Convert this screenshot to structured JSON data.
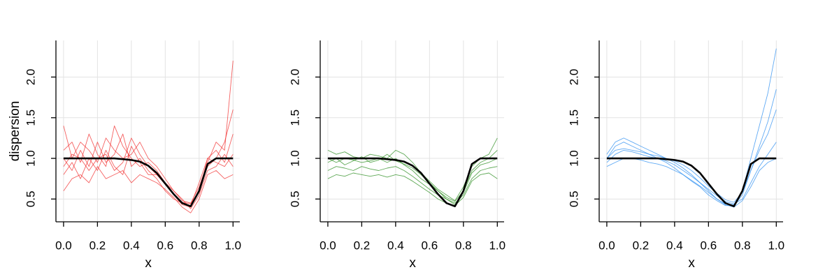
{
  "chart_data": [
    {
      "type": "line",
      "xlabel": "x",
      "ylabel": "dispersion",
      "xlim": [
        -0.045,
        1.04
      ],
      "ylim": [
        0.22,
        2.45
      ],
      "xticks": [
        {
          "value": 0,
          "label": "0.0"
        },
        {
          "value": 0.2,
          "label": "0.2"
        },
        {
          "value": 0.4,
          "label": "0.4"
        },
        {
          "value": 0.6,
          "label": "0.6"
        },
        {
          "value": 0.8,
          "label": "0.8"
        },
        {
          "value": 1,
          "label": "1.0"
        }
      ],
      "yticks": [
        {
          "value": 0.5,
          "label": "0.5"
        },
        {
          "value": 1,
          "label": "1.0"
        },
        {
          "value": 1.5,
          "label": "1.5"
        },
        {
          "value": 2,
          "label": "2.0"
        }
      ],
      "grid": true,
      "x": [
        0,
        0.05,
        0.1,
        0.15,
        0.2,
        0.25,
        0.3,
        0.35,
        0.4,
        0.45,
        0.5,
        0.55,
        0.6,
        0.65,
        0.7,
        0.75,
        0.8,
        0.85,
        0.9,
        0.95,
        1
      ],
      "series": [
        {
          "color": "#f22e2e",
          "values": [
            1.0,
            0.85,
            1.1,
            0.9,
            1.2,
            0.95,
            1.05,
            1.3,
            0.9,
            1.0,
            0.85,
            0.75,
            0.6,
            0.5,
            0.45,
            0.42,
            0.7,
            1.0,
            1.1,
            0.95,
            1.3
          ]
        },
        {
          "color": "#f22e2e",
          "values": [
            0.8,
            0.95,
            0.75,
            1.0,
            0.85,
            1.1,
            0.9,
            0.8,
            1.15,
            0.95,
            0.8,
            0.8,
            0.7,
            0.6,
            0.5,
            0.38,
            0.55,
            0.85,
            0.9,
            1.05,
            0.9
          ]
        },
        {
          "color": "#f22e2e",
          "values": [
            1.4,
            1.0,
            1.2,
            1.1,
            0.95,
            1.25,
            1.1,
            1.0,
            1.05,
            1.2,
            1.0,
            0.9,
            0.75,
            0.6,
            0.48,
            0.45,
            0.65,
            0.95,
            1.2,
            1.1,
            2.2
          ]
        },
        {
          "color": "#f22e2e",
          "values": [
            0.6,
            0.75,
            0.8,
            0.7,
            0.9,
            0.75,
            0.8,
            0.85,
            0.7,
            0.8,
            0.75,
            0.7,
            0.62,
            0.52,
            0.4,
            0.33,
            0.5,
            0.8,
            0.85,
            0.75,
            0.8
          ]
        },
        {
          "color": "#f22e2e",
          "values": [
            1.1,
            1.2,
            0.95,
            1.3,
            1.05,
            0.9,
            1.4,
            1.15,
            1.0,
            0.9,
            0.95,
            0.85,
            0.7,
            0.55,
            0.43,
            0.4,
            0.62,
            0.9,
            1.0,
            1.2,
            1.6
          ]
        },
        {
          "color": "#f22e2e",
          "values": [
            0.9,
            1.05,
            1.0,
            0.85,
            1.0,
            1.05,
            0.85,
            0.95,
            1.25,
            1.05,
            0.9,
            0.8,
            0.68,
            0.55,
            0.46,
            0.44,
            0.58,
            1.0,
            0.95,
            0.9,
            1.05
          ]
        },
        {
          "color": "#000000",
          "values": [
            1,
            1,
            1,
            1,
            1,
            1,
            1,
            0.99,
            0.98,
            0.96,
            0.91,
            0.82,
            0.69,
            0.56,
            0.45,
            0.41,
            0.6,
            0.93,
            1,
            1,
            1
          ]
        }
      ]
    },
    {
      "type": "line",
      "xlabel": "x",
      "xlim": [
        -0.045,
        1.04
      ],
      "ylim": [
        0.22,
        2.45
      ],
      "xticks": [
        {
          "value": 0,
          "label": "0.0"
        },
        {
          "value": 0.2,
          "label": "0.2"
        },
        {
          "value": 0.4,
          "label": "0.4"
        },
        {
          "value": 0.6,
          "label": "0.6"
        },
        {
          "value": 0.8,
          "label": "0.8"
        },
        {
          "value": 1,
          "label": "1.0"
        }
      ],
      "yticks": [
        {
          "value": 0.5,
          "label": "0.5"
        },
        {
          "value": 1,
          "label": "1.0"
        },
        {
          "value": 1.5,
          "label": "1.5"
        },
        {
          "value": 2,
          "label": "2.0"
        }
      ],
      "grid": true,
      "x": [
        0,
        0.05,
        0.1,
        0.15,
        0.2,
        0.25,
        0.3,
        0.35,
        0.4,
        0.45,
        0.5,
        0.55,
        0.6,
        0.65,
        0.7,
        0.75,
        0.8,
        0.85,
        0.9,
        0.95,
        1
      ],
      "series": [
        {
          "color": "#2a8c1e",
          "values": [
            1.0,
            0.95,
            1.0,
            0.98,
            0.95,
            0.97,
            1.0,
            0.95,
            1.0,
            0.92,
            0.85,
            0.75,
            0.68,
            0.6,
            0.52,
            0.47,
            0.6,
            0.85,
            0.95,
            1.0,
            1.1
          ]
        },
        {
          "color": "#2a8c1e",
          "values": [
            0.85,
            0.9,
            0.88,
            0.85,
            0.9,
            0.87,
            0.85,
            0.88,
            0.9,
            0.85,
            0.78,
            0.7,
            0.62,
            0.55,
            0.5,
            0.45,
            0.55,
            0.75,
            0.85,
            0.88,
            0.9
          ]
        },
        {
          "color": "#2a8c1e",
          "values": [
            1.1,
            1.05,
            1.08,
            1.02,
            1.0,
            1.05,
            1.03,
            1.0,
            1.1,
            1.05,
            0.95,
            0.82,
            0.72,
            0.62,
            0.55,
            0.48,
            0.65,
            0.9,
            1.0,
            1.05,
            1.25
          ]
        },
        {
          "color": "#2a8c1e",
          "values": [
            0.75,
            0.8,
            0.78,
            0.82,
            0.8,
            0.78,
            0.8,
            0.77,
            0.8,
            0.78,
            0.72,
            0.65,
            0.58,
            0.5,
            0.45,
            0.42,
            0.52,
            0.72,
            0.8,
            0.82,
            0.75
          ]
        },
        {
          "color": "#2a8c1e",
          "values": [
            0.95,
            1.0,
            0.92,
            0.97,
            1.02,
            0.95,
            0.98,
            1.05,
            0.97,
            0.93,
            0.88,
            0.8,
            0.7,
            0.6,
            0.5,
            0.43,
            0.58,
            0.82,
            0.92,
            0.95,
            1.0
          ]
        },
        {
          "color": "#000000",
          "values": [
            1,
            1,
            1,
            1,
            1,
            1,
            1,
            0.99,
            0.98,
            0.96,
            0.91,
            0.82,
            0.69,
            0.56,
            0.45,
            0.41,
            0.6,
            0.93,
            1,
            1,
            1
          ]
        }
      ]
    },
    {
      "type": "line",
      "xlabel": "x",
      "xlim": [
        -0.045,
        1.04
      ],
      "ylim": [
        0.22,
        2.45
      ],
      "xticks": [
        {
          "value": 0,
          "label": "0.0"
        },
        {
          "value": 0.2,
          "label": "0.2"
        },
        {
          "value": 0.4,
          "label": "0.4"
        },
        {
          "value": 0.6,
          "label": "0.6"
        },
        {
          "value": 0.8,
          "label": "0.8"
        },
        {
          "value": 1,
          "label": "1.0"
        }
      ],
      "yticks": [
        {
          "value": 0.5,
          "label": "0.5"
        },
        {
          "value": 1,
          "label": "1.0"
        },
        {
          "value": 1.5,
          "label": "1.5"
        },
        {
          "value": 2,
          "label": "2.0"
        }
      ],
      "grid": true,
      "x": [
        0,
        0.05,
        0.1,
        0.15,
        0.2,
        0.25,
        0.3,
        0.35,
        0.4,
        0.45,
        0.5,
        0.55,
        0.6,
        0.65,
        0.7,
        0.75,
        0.8,
        0.85,
        0.9,
        0.95,
        1
      ],
      "series": [
        {
          "color": "#2b8ef0",
          "values": [
            1.0,
            1.15,
            1.2,
            1.15,
            1.1,
            1.05,
            1.0,
            0.95,
            0.88,
            0.8,
            0.72,
            0.65,
            0.55,
            0.48,
            0.42,
            0.42,
            0.55,
            0.85,
            1.1,
            1.3,
            1.6
          ]
        },
        {
          "color": "#2b8ef0",
          "values": [
            0.95,
            1.05,
            1.1,
            1.08,
            1.05,
            1.02,
            1.0,
            0.97,
            0.92,
            0.85,
            0.78,
            0.7,
            0.62,
            0.54,
            0.47,
            0.44,
            0.5,
            0.7,
            0.9,
            1.05,
            1.2
          ]
        },
        {
          "color": "#2b8ef0",
          "values": [
            1.05,
            1.2,
            1.25,
            1.2,
            1.15,
            1.1,
            1.05,
            1.0,
            0.95,
            0.88,
            0.8,
            0.7,
            0.6,
            0.5,
            0.44,
            0.43,
            0.6,
            1.0,
            1.4,
            1.8,
            2.35
          ]
        },
        {
          "color": "#2b8ef0",
          "values": [
            0.9,
            0.95,
            1.0,
            1.0,
            0.98,
            0.95,
            0.93,
            0.9,
            0.85,
            0.8,
            0.73,
            0.66,
            0.58,
            0.5,
            0.43,
            0.4,
            0.48,
            0.65,
            0.85,
            0.95,
            1.0
          ]
        },
        {
          "color": "#2b8ef0",
          "values": [
            1.0,
            1.1,
            1.12,
            1.1,
            1.08,
            1.05,
            1.03,
            1.0,
            0.97,
            0.92,
            0.85,
            0.76,
            0.66,
            0.57,
            0.49,
            0.46,
            0.58,
            0.85,
            1.15,
            1.45,
            1.85
          ]
        },
        {
          "color": "#000000",
          "values": [
            1,
            1,
            1,
            1,
            1,
            1,
            1,
            0.99,
            0.98,
            0.96,
            0.91,
            0.82,
            0.69,
            0.56,
            0.45,
            0.41,
            0.6,
            0.93,
            1,
            1,
            1
          ]
        }
      ]
    }
  ]
}
